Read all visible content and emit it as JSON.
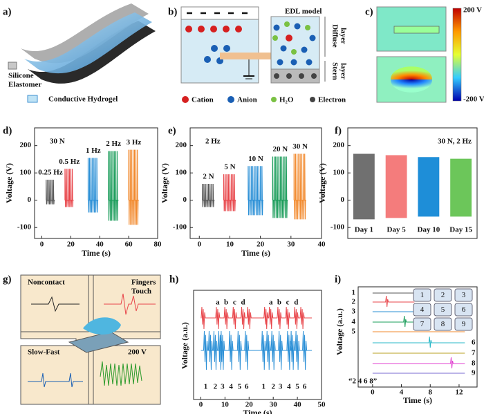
{
  "panels": {
    "a": {
      "label": "a)",
      "silicone": [
        "Silicone",
        "Elastomer"
      ],
      "hydrogel": "Conductive Hydrogel"
    },
    "b": {
      "label": "b)",
      "model": "EDL model",
      "diffuse": [
        "Diffuse",
        "layer"
      ],
      "stern": [
        "Stern",
        "layer"
      ],
      "legend": [
        "Cation",
        "Anion",
        "H₂O",
        "Electron"
      ]
    },
    "c": {
      "label": "c)",
      "colorbar_max": "200 V",
      "colorbar_min": "-200 V"
    },
    "g": {
      "label": "g)",
      "noncontact": "Noncontact",
      "touch": [
        "Fingers",
        "Touch"
      ],
      "slowfast": "Slow-Fast",
      "voltage": "200 V"
    },
    "h": {
      "label": "h)",
      "y_label": "Voltage (a.u.)",
      "x_label": "Time (s)",
      "xlim": [
        -3,
        50
      ],
      "xticks": [
        0,
        10,
        20,
        30,
        40,
        50
      ],
      "letters": [
        "a",
        "b",
        "c",
        "d",
        "a",
        "b",
        "c",
        "d"
      ],
      "numbers": [
        "1",
        "2",
        "3",
        "4",
        "5",
        "6",
        "1",
        "2",
        "3",
        "4",
        "5",
        "6"
      ]
    },
    "i": {
      "label": "i)",
      "y_label": "Voltage (a.u.)",
      "x_label": "Time (s)",
      "xlim": [
        -2,
        14.5
      ],
      "xticks": [
        0,
        4,
        8,
        12
      ],
      "rows": [
        "1",
        "2",
        "3",
        "4",
        "5",
        "6",
        "7",
        "8",
        "9"
      ],
      "keys": [
        "1",
        "2",
        "3",
        "4",
        "5",
        "6",
        "7",
        "8",
        "9"
      ],
      "caption": "“2 4 6 8”"
    }
  },
  "chart_data": [
    {
      "type": "burst",
      "label": "d)",
      "annotation": "30 N",
      "y_label": "Voltage (V)",
      "x_label": "Time (s)",
      "xlim": [
        -5,
        80
      ],
      "xticks": [
        0,
        20,
        40,
        60,
        80
      ],
      "ylim": [
        -140,
        265
      ],
      "yticks": [
        -100,
        0,
        100,
        200
      ],
      "bursts": [
        {
          "label": "0.25 Hz",
          "start": 3,
          "end": 9,
          "max": 75,
          "min": -15,
          "color": "#555555"
        },
        {
          "label": "0.5 Hz",
          "start": 16,
          "end": 22,
          "max": 115,
          "min": -25,
          "color": "#e8454a"
        },
        {
          "label": "1 Hz",
          "start": 32,
          "end": 39,
          "max": 155,
          "min": -45,
          "color": "#2a8fd6"
        },
        {
          "label": "2 Hz",
          "start": 46,
          "end": 53,
          "max": 180,
          "min": -75,
          "color": "#1a9c5a"
        },
        {
          "label": "3 Hz",
          "start": 60,
          "end": 67,
          "max": 185,
          "min": -90,
          "color": "#f28a2e"
        }
      ]
    },
    {
      "type": "burst",
      "label": "e)",
      "annotation": "2 Hz",
      "y_label": "Voltage (V)",
      "x_label": "Time (s)",
      "xlim": [
        -3,
        40
      ],
      "xticks": [
        0,
        10,
        20,
        30,
        40
      ],
      "ylim": [
        -140,
        265
      ],
      "yticks": [
        -100,
        0,
        100,
        200
      ],
      "bursts": [
        {
          "label": "2 N",
          "start": 1,
          "end": 5,
          "max": 60,
          "min": -25,
          "color": "#555555"
        },
        {
          "label": "5 N",
          "start": 8,
          "end": 12,
          "max": 95,
          "min": -40,
          "color": "#e8454a"
        },
        {
          "label": "10 N",
          "start": 16,
          "end": 21,
          "max": 125,
          "min": -55,
          "color": "#2a8fd6"
        },
        {
          "label": "20 N",
          "start": 24,
          "end": 29,
          "max": 160,
          "min": -65,
          "color": "#1a9c5a"
        },
        {
          "label": "30 N",
          "start": 31,
          "end": 35,
          "max": 170,
          "min": -70,
          "color": "#f28a2e"
        }
      ]
    },
    {
      "type": "burst",
      "label": "f)",
      "annotation": "30 N, 2 Hz",
      "y_label": "Voltage (V)",
      "categories": [
        "Day 1",
        "Day 5",
        "Day 10",
        "Day 15"
      ],
      "ylim": [
        -140,
        265
      ],
      "yticks": [
        -100,
        0,
        100,
        200
      ],
      "bursts": [
        {
          "max": 170,
          "min": -70,
          "color": "#707070"
        },
        {
          "max": 165,
          "min": -65,
          "color": "#f47c7c"
        },
        {
          "max": 158,
          "min": -60,
          "color": "#1e8ed8"
        },
        {
          "max": 152,
          "min": -60,
          "color": "#6cc65a"
        }
      ]
    }
  ]
}
